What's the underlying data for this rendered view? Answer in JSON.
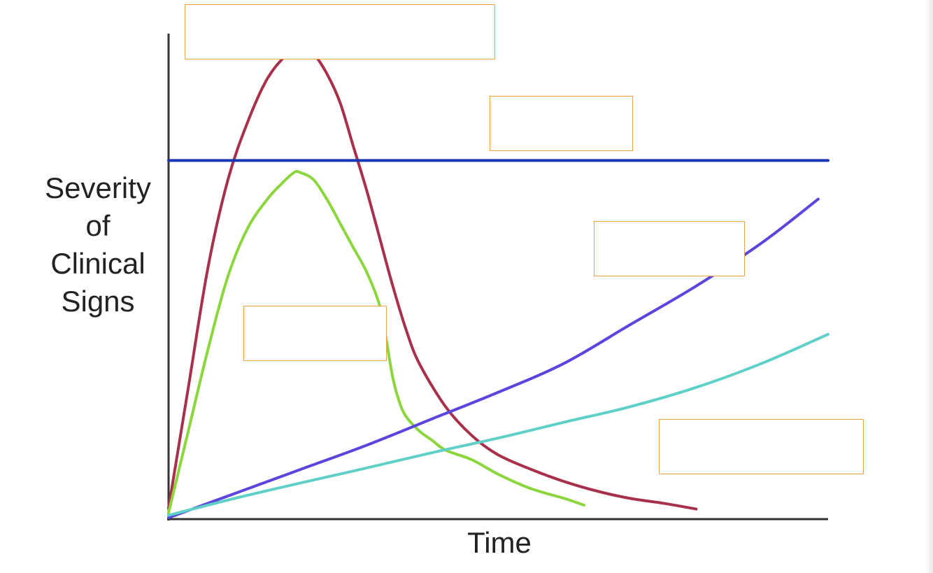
{
  "chart_data": {
    "type": "line",
    "xlabel": "Time",
    "ylabel": "Severity\nof\nClinical\nSigns",
    "grid": false,
    "legend": "none",
    "xlim": [
      0,
      100
    ],
    "ylim": [
      0,
      100
    ],
    "series": [
      {
        "color": "#a8304a",
        "x": [
          0,
          3,
          6,
          9,
          12,
          15,
          18,
          20,
          22,
          24,
          26,
          28,
          30,
          32,
          34,
          36,
          38,
          42,
          46,
          50,
          55,
          60,
          65,
          70,
          75,
          80
        ],
        "y": [
          2,
          27,
          52,
          70,
          82,
          91,
          96,
          97,
          96,
          92,
          86,
          77,
          68,
          58,
          48,
          39,
          32,
          23,
          17,
          13,
          10,
          7.5,
          5.5,
          4,
          3,
          1.8
        ]
      },
      {
        "color": "#8bd63c",
        "x": [
          0,
          3,
          6,
          9,
          12,
          15,
          17,
          19,
          20,
          22,
          24,
          26,
          28,
          30,
          32,
          33,
          34,
          35,
          36,
          38,
          40,
          42,
          46,
          50,
          55,
          60,
          63
        ],
        "y": [
          1,
          18,
          35,
          50,
          60,
          66,
          69,
          71.5,
          71.5,
          70,
          66,
          61,
          56,
          51,
          44,
          37,
          29,
          24,
          21,
          18,
          16,
          14,
          12,
          9,
          6,
          4,
          2.6
        ]
      },
      {
        "color": "#1b36b4",
        "x": [
          0,
          100
        ],
        "y": [
          74,
          74
        ]
      },
      {
        "color": "#5b45dd",
        "x": [
          0,
          10,
          20,
          30,
          40,
          50,
          60,
          70,
          80,
          90,
          98.5
        ],
        "y": [
          0,
          5,
          10,
          15,
          20.5,
          26,
          32,
          40,
          48,
          57,
          66
        ]
      },
      {
        "color": "#5fd0c8",
        "x": [
          0,
          10,
          20,
          30,
          40,
          50,
          60,
          70,
          80,
          90,
          100
        ],
        "y": [
          0.5,
          4,
          7.2,
          10.3,
          13.5,
          16.5,
          19.8,
          23,
          27,
          32,
          38
        ]
      }
    ]
  }
}
